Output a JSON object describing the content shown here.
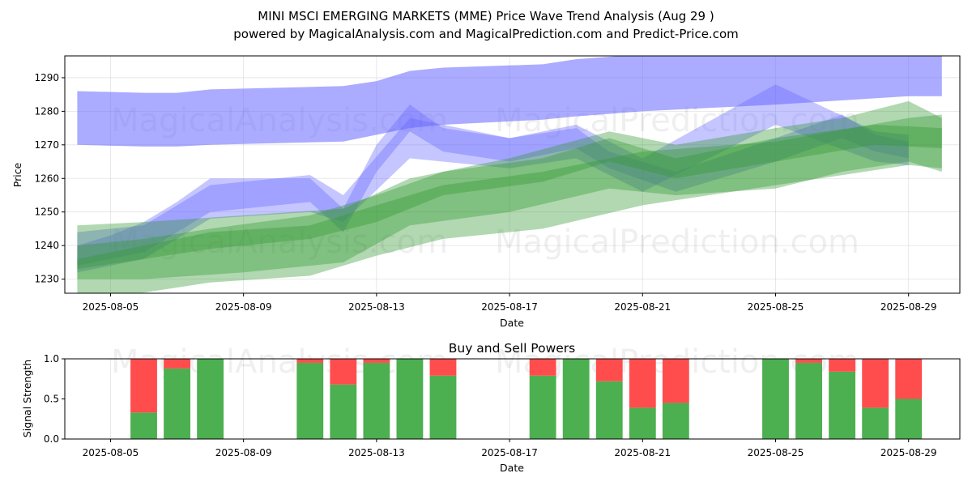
{
  "title": "MINI MSCI EMERGING MARKETS (MME) Price Wave Trend Analysis (Aug 29 )",
  "subtitle": "powered by MagicalAnalysis.com and MagicalPrediction.com and Predict-Price.com",
  "watermarks": [
    "MagicalAnalysis.com",
    "MagicalPrediction.com"
  ],
  "colors": {
    "blue_band": "#6666ff",
    "green_band": "#339933",
    "buy": "#4caf50",
    "sell": "#ff4d4d"
  },
  "chart_data": [
    {
      "type": "area",
      "xlabel": "Date",
      "ylabel": "Price",
      "x_ticks": [
        "2025-08-05",
        "2025-08-09",
        "2025-08-13",
        "2025-08-17",
        "2025-08-21",
        "2025-08-25",
        "2025-08-29"
      ],
      "y_ticks": [
        1230,
        1240,
        1250,
        1260,
        1270,
        1280,
        1290
      ],
      "xlim": [
        "2025-08-03T15:00",
        "2025-08-30T13:00"
      ],
      "ylim": [
        1225.8,
        1296.5
      ],
      "grid": true,
      "series": [
        {
          "color": "blue",
          "x": [
            "2025-08-04",
            "2025-08-06",
            "2025-08-07",
            "2025-08-08",
            "2025-08-12",
            "2025-08-13",
            "2025-08-14",
            "2025-08-15",
            "2025-08-18",
            "2025-08-19",
            "2025-08-21",
            "2025-08-25",
            "2025-08-29",
            "2025-08-30"
          ],
          "upper": [
            1286,
            1285.5,
            1285.5,
            1286.5,
            1287.5,
            1289,
            1292,
            1293,
            1294,
            1295.5,
            1297,
            1297,
            1297,
            1297
          ],
          "lower": [
            1270,
            1269.5,
            1269.5,
            1270,
            1271,
            1273,
            1275,
            1276,
            1277.5,
            1278.5,
            1280,
            1282,
            1284.5,
            1284.5
          ]
        },
        {
          "color": "blue",
          "x": [
            "2025-08-04",
            "2025-08-05",
            "2025-08-06",
            "2025-08-07",
            "2025-08-08",
            "2025-08-11",
            "2025-08-12",
            "2025-08-13",
            "2025-08-14",
            "2025-08-15",
            "2025-08-17",
            "2025-08-19",
            "2025-08-20",
            "2025-08-22",
            "2025-08-25",
            "2025-08-27",
            "2025-08-28",
            "2025-08-29"
          ],
          "upper": [
            1240,
            1243,
            1247,
            1253,
            1260,
            1260,
            1251,
            1270,
            1282,
            1275,
            1272,
            1275,
            1268,
            1262,
            1272,
            1279,
            1273,
            1271
          ],
          "lower": [
            1234,
            1236,
            1238,
            1244,
            1250,
            1253,
            1244,
            1262,
            1274,
            1268,
            1265,
            1269,
            1263,
            1256,
            1265,
            1272,
            1268,
            1266
          ]
        },
        {
          "color": "blue",
          "x": [
            "2025-08-04",
            "2025-08-06",
            "2025-08-08",
            "2025-08-11",
            "2025-08-12",
            "2025-08-14",
            "2025-08-17",
            "2025-08-19",
            "2025-08-21",
            "2025-08-25",
            "2025-08-28",
            "2025-08-29"
          ],
          "upper": [
            1244,
            1246,
            1258,
            1261,
            1255,
            1278,
            1272,
            1276,
            1266,
            1288,
            1274,
            1273
          ],
          "lower": [
            1232,
            1236,
            1248,
            1250,
            1247,
            1266,
            1263,
            1266,
            1256,
            1276,
            1265,
            1264
          ]
        },
        {
          "color": "green",
          "x": [
            "2025-08-04",
            "2025-08-06",
            "2025-08-08",
            "2025-08-11",
            "2025-08-13",
            "2025-08-15",
            "2025-08-18",
            "2025-08-20",
            "2025-08-22",
            "2025-08-25",
            "2025-08-28",
            "2025-08-30"
          ],
          "upper": [
            1240,
            1242,
            1245,
            1249,
            1255,
            1262,
            1266,
            1272,
            1266,
            1272,
            1276,
            1275
          ],
          "lower": [
            1233,
            1236,
            1239,
            1242,
            1247,
            1255,
            1259,
            1265,
            1260,
            1265,
            1270,
            1269
          ]
        },
        {
          "color": "green",
          "x": [
            "2025-08-04",
            "2025-08-06",
            "2025-08-09",
            "2025-08-12",
            "2025-08-14",
            "2025-08-17",
            "2025-08-20",
            "2025-08-22",
            "2025-08-25",
            "2025-08-27",
            "2025-08-29",
            "2025-08-30"
          ],
          "upper": [
            1246,
            1247,
            1249,
            1251,
            1260,
            1266,
            1274,
            1270,
            1275,
            1278,
            1283,
            1278
          ],
          "lower": [
            1230,
            1230,
            1232,
            1235,
            1246,
            1250,
            1257,
            1255,
            1257,
            1262,
            1265,
            1262
          ]
        },
        {
          "color": "green",
          "x": [
            "2025-08-04",
            "2025-08-06",
            "2025-08-08",
            "2025-08-11",
            "2025-08-13",
            "2025-08-15",
            "2025-08-18",
            "2025-08-21",
            "2025-08-25",
            "2025-08-29",
            "2025-08-30"
          ],
          "upper": [
            1236,
            1240,
            1244,
            1246,
            1252,
            1258,
            1262,
            1268,
            1271,
            1278,
            1279
          ],
          "lower": [
            1224,
            1226,
            1229,
            1231,
            1237,
            1242,
            1245,
            1252,
            1258,
            1264,
            1263
          ]
        }
      ]
    },
    {
      "type": "bar",
      "title": "Buy and Sell Powers",
      "xlabel": "Date",
      "ylabel": "Signal Strength",
      "x_ticks": [
        "2025-08-05",
        "2025-08-09",
        "2025-08-13",
        "2025-08-17",
        "2025-08-21",
        "2025-08-25",
        "2025-08-29"
      ],
      "y_ticks": [
        "0.0",
        "0.5",
        "1.0"
      ],
      "ylim": [
        0,
        1
      ],
      "xlim": [
        "2025-08-03T15:00",
        "2025-08-30T13:00"
      ],
      "dates": [
        "2025-08-06",
        "2025-08-07",
        "2025-08-08",
        "2025-08-11",
        "2025-08-12",
        "2025-08-13",
        "2025-08-14",
        "2025-08-15",
        "2025-08-18",
        "2025-08-19",
        "2025-08-20",
        "2025-08-21",
        "2025-08-22",
        "2025-08-25",
        "2025-08-26",
        "2025-08-27",
        "2025-08-28",
        "2025-08-29"
      ],
      "series": [
        {
          "name": "buy",
          "values": [
            0.33,
            0.88,
            1.0,
            0.95,
            0.68,
            0.95,
            1.0,
            0.79,
            0.79,
            1.0,
            0.72,
            0.39,
            0.45,
            1.0,
            0.95,
            0.84,
            0.39,
            0.5
          ]
        },
        {
          "name": "sell",
          "values": [
            0.67,
            0.12,
            0.0,
            0.05,
            0.32,
            0.05,
            0.0,
            0.21,
            0.21,
            0.0,
            0.28,
            0.61,
            0.55,
            0.0,
            0.05,
            0.16,
            0.61,
            0.5
          ]
        }
      ]
    }
  ]
}
